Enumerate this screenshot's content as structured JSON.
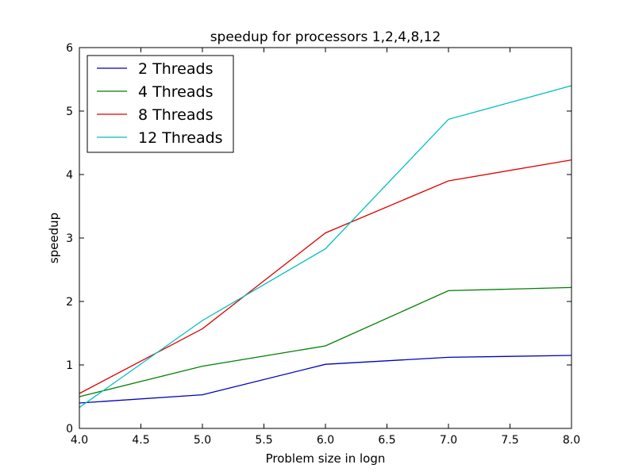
{
  "chart_data": {
    "type": "line",
    "title": "speedup for processors 1,2,4,8,12",
    "xlabel": "Problem size in logn",
    "ylabel": "speedup",
    "xlim": [
      4.0,
      8.0
    ],
    "ylim": [
      0,
      6
    ],
    "xticks": [
      "4.0",
      "4.5",
      "5.0",
      "5.5",
      "6.0",
      "6.5",
      "7.0",
      "7.5",
      "8.0"
    ],
    "yticks": [
      "0",
      "1",
      "2",
      "3",
      "4",
      "5",
      "6"
    ],
    "x": [
      4.0,
      5.0,
      6.0,
      7.0,
      8.0
    ],
    "grid": false,
    "legend_position": "top-left",
    "series": [
      {
        "name": "2 Threads",
        "color": "#0000bf",
        "values": [
          0.4,
          0.53,
          1.01,
          1.12,
          1.15
        ]
      },
      {
        "name": "4 Threads",
        "color": "#007f00",
        "values": [
          0.5,
          0.98,
          1.3,
          2.17,
          2.22
        ]
      },
      {
        "name": "8 Threads",
        "color": "#e00000",
        "values": [
          0.55,
          1.57,
          3.08,
          3.9,
          4.23
        ]
      },
      {
        "name": "12 Threads",
        "color": "#00bfbf",
        "values": [
          0.33,
          1.7,
          2.83,
          4.87,
          5.4
        ]
      }
    ]
  }
}
